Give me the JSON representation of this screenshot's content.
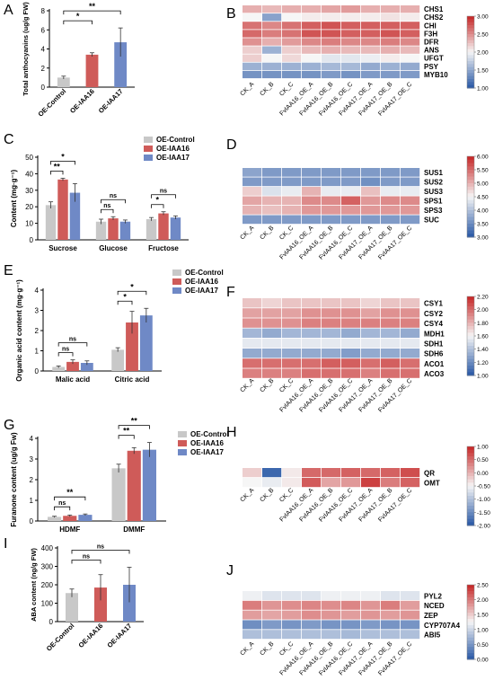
{
  "colors": {
    "control": "#c8c8c8",
    "iaa16": "#cf5b59",
    "iaa17": "#6f89c6",
    "heat_low": "#2f5da8",
    "heat_mid": "#f6f6f6",
    "heat_high": "#c72c2c",
    "axis": "#000000"
  },
  "panels": {
    "A": {
      "letter": "A"
    },
    "B": {
      "letter": "B"
    },
    "C": {
      "letter": "C"
    },
    "D": {
      "letter": "D"
    },
    "E": {
      "letter": "E"
    },
    "F": {
      "letter": "F"
    },
    "G": {
      "letter": "G"
    },
    "H": {
      "letter": "H"
    },
    "I": {
      "letter": "I"
    },
    "J": {
      "letter": "J"
    }
  },
  "chart_data": [
    {
      "id": "A",
      "type": "bar",
      "ylabel": "Total anthocyanins (ug/g FW)",
      "ylim": [
        0,
        8
      ],
      "yticks": [
        0,
        2,
        4,
        6,
        8
      ],
      "categories": [
        "OE-Control",
        "OE-IAA16",
        "OE-IAA17"
      ],
      "values": [
        1.0,
        3.4,
        4.7
      ],
      "errors": [
        0.15,
        0.2,
        1.5
      ],
      "significance": [
        {
          "from": 0,
          "to": 1,
          "label": "*"
        },
        {
          "from": 0,
          "to": 2,
          "label": "**"
        }
      ]
    },
    {
      "id": "C",
      "type": "bar",
      "ylabel": "Content (mg·g⁻¹)",
      "ylim": [
        0,
        50
      ],
      "yticks": [
        0,
        10,
        20,
        30,
        40,
        50
      ],
      "categories": [
        "Sucrose",
        "Glucose",
        "Fructose"
      ],
      "series": [
        {
          "name": "OE-Control",
          "values": [
            21,
            11,
            12.5
          ],
          "errors": [
            2,
            1.5,
            1
          ]
        },
        {
          "name": "OE-IAA16",
          "values": [
            36.5,
            13,
            16
          ],
          "errors": [
            0.8,
            1,
            1
          ]
        },
        {
          "name": "OE-IAA17",
          "values": [
            28.5,
            11,
            13.5
          ],
          "errors": [
            5.5,
            1,
            1
          ]
        }
      ],
      "significance": [
        {
          "group": 0,
          "from": 0,
          "to": 1,
          "label": "**"
        },
        {
          "group": 0,
          "from": 0,
          "to": 2,
          "label": "*"
        },
        {
          "group": 1,
          "from": 0,
          "to": 1,
          "label": "ns"
        },
        {
          "group": 1,
          "from": 0,
          "to": 2,
          "label": "ns"
        },
        {
          "group": 2,
          "from": 0,
          "to": 1,
          "label": "*"
        },
        {
          "group": 2,
          "from": 0,
          "to": 2,
          "label": "ns"
        }
      ]
    },
    {
      "id": "E",
      "type": "bar",
      "ylabel": "Organic acid content (mg·g⁻¹)",
      "ylim": [
        0,
        4
      ],
      "yticks": [
        0,
        1,
        2,
        3,
        4
      ],
      "categories": [
        "Malic acid",
        "Citric acid"
      ],
      "series": [
        {
          "name": "OE-Control",
          "values": [
            0.2,
            1.05
          ],
          "errors": [
            0.05,
            0.1
          ]
        },
        {
          "name": "OE-IAA16",
          "values": [
            0.45,
            2.4
          ],
          "errors": [
            0.1,
            0.55
          ]
        },
        {
          "name": "OE-IAA17",
          "values": [
            0.4,
            2.75
          ],
          "errors": [
            0.1,
            0.35
          ]
        }
      ],
      "significance": [
        {
          "group": 0,
          "from": 0,
          "to": 1,
          "label": "ns"
        },
        {
          "group": 0,
          "from": 0,
          "to": 2,
          "label": "ns"
        },
        {
          "group": 1,
          "from": 0,
          "to": 1,
          "label": "*"
        },
        {
          "group": 1,
          "from": 0,
          "to": 2,
          "label": "*"
        }
      ]
    },
    {
      "id": "G",
      "type": "bar",
      "ylabel": "Furanone content (ug/g Fw)",
      "ylim": [
        0,
        4
      ],
      "yticks": [
        0,
        1,
        2,
        3,
        4
      ],
      "categories": [
        "HDMF",
        "DMMF"
      ],
      "series": [
        {
          "name": "OE-Control",
          "values": [
            0.2,
            2.55
          ],
          "errors": [
            0.03,
            0.2
          ]
        },
        {
          "name": "OE-IAA16",
          "values": [
            0.25,
            3.4
          ],
          "errors": [
            0.04,
            0.15
          ]
        },
        {
          "name": "OE-IAA17",
          "values": [
            0.3,
            3.45
          ],
          "errors": [
            0.04,
            0.35
          ]
        }
      ],
      "significance": [
        {
          "group": 0,
          "from": 0,
          "to": 1,
          "label": "ns"
        },
        {
          "group": 0,
          "from": 0,
          "to": 2,
          "label": "**"
        },
        {
          "group": 1,
          "from": 0,
          "to": 1,
          "label": "**"
        },
        {
          "group": 1,
          "from": 0,
          "to": 2,
          "label": "**"
        }
      ]
    },
    {
      "id": "I",
      "type": "bar",
      "ylabel": "ABA content (ng/g FW)",
      "ylim": [
        0,
        400
      ],
      "yticks": [
        0,
        100,
        200,
        300,
        400
      ],
      "categories": [
        "OE-Control",
        "OE-IAA16",
        "OE-IAA17"
      ],
      "values": [
        155,
        185,
        200
      ],
      "errors": [
        22,
        70,
        95
      ],
      "significance": [
        {
          "from": 0,
          "to": 1,
          "label": "ns"
        },
        {
          "from": 0,
          "to": 2,
          "label": "ns"
        }
      ]
    },
    {
      "id": "B",
      "type": "heatmap",
      "columns": [
        "CK_A",
        "CK_B",
        "CK_C",
        "FvIAA16_OE_A",
        "FvIAA16_OE_B",
        "FvIAA16_OE_C",
        "FvIAA17_OE_A",
        "FvIAA17_OE_B",
        "FvIAA17_OE_C"
      ],
      "rows": [
        "CHS1",
        "CHS2",
        "CHI",
        "F3H",
        "DFR",
        "ANS",
        "UFGT",
        "PSY",
        "MYB10"
      ],
      "scale": [
        1.0,
        3.0
      ],
      "scale_ticks": [
        "3.00",
        "2.50",
        "2.00",
        "1.50",
        "1.00"
      ],
      "values": [
        [
          2.35,
          2.3,
          2.35,
          2.35,
          2.4,
          2.45,
          2.35,
          2.35,
          2.35
        ],
        [
          2.0,
          1.45,
          2.0,
          2.05,
          2.05,
          2.05,
          2.05,
          2.1,
          2.05
        ],
        [
          2.65,
          2.55,
          2.65,
          2.75,
          2.8,
          2.75,
          2.75,
          2.75,
          2.75
        ],
        [
          2.7,
          2.6,
          2.65,
          2.8,
          2.8,
          2.75,
          2.75,
          2.8,
          2.75
        ],
        [
          2.5,
          2.35,
          2.45,
          2.55,
          2.6,
          2.55,
          2.55,
          2.6,
          2.55
        ],
        [
          2.2,
          1.55,
          2.2,
          2.3,
          2.35,
          2.3,
          2.3,
          2.35,
          2.3
        ],
        [
          2.2,
          2.0,
          2.15,
          2.0,
          1.9,
          1.9,
          1.95,
          2.05,
          2.0
        ],
        [
          1.55,
          1.55,
          1.55,
          1.55,
          1.6,
          1.6,
          1.5,
          1.55,
          1.5
        ],
        [
          1.35,
          1.35,
          1.35,
          1.35,
          1.4,
          1.35,
          1.4,
          1.4,
          1.4
        ]
      ]
    },
    {
      "id": "D",
      "type": "heatmap",
      "columns": [
        "CK_A",
        "CK_B",
        "CK_C",
        "FvIAA16_OE_A",
        "FvIAA16_OE_B",
        "FvIAA16_OE_C",
        "FvIAA17_OE_A",
        "FvIAA17_OE_B",
        "FvIAA17_OE_C"
      ],
      "rows": [
        "SUS1",
        "SUS2",
        "SUS3",
        "SPS1",
        "SPS3",
        "SUC"
      ],
      "scale": [
        3.0,
        6.0
      ],
      "scale_ticks": [
        "6.00",
        "5.50",
        "5.00",
        "4.50",
        "4.00",
        "3.50",
        "3.00"
      ],
      "values": [
        [
          3.7,
          3.6,
          3.6,
          3.6,
          3.6,
          3.6,
          3.6,
          3.6,
          3.6
        ],
        [
          3.6,
          3.6,
          3.6,
          3.6,
          3.6,
          3.6,
          3.5,
          3.6,
          3.6
        ],
        [
          4.8,
          4.3,
          4.4,
          5.0,
          4.4,
          4.4,
          4.9,
          4.4,
          4.4
        ],
        [
          5.1,
          5.0,
          5.0,
          5.3,
          5.3,
          5.6,
          5.2,
          5.3,
          5.3
        ],
        [
          5.0,
          4.9,
          5.0,
          5.2,
          5.2,
          5.2,
          5.2,
          5.2,
          5.2
        ],
        [
          3.6,
          3.6,
          3.6,
          3.6,
          3.6,
          3.6,
          3.6,
          3.6,
          3.6
        ]
      ]
    },
    {
      "id": "F",
      "type": "heatmap",
      "columns": [
        "CK_A",
        "CK_B",
        "CK_C",
        "FvIAA16_OE_A",
        "FvIAA16_OE_B",
        "FvIAA16_OE_C",
        "FvIAA17_OE_A",
        "FvIAA17_OE_B",
        "FvIAA17_OE_C"
      ],
      "rows": [
        "CSY1",
        "CSY2",
        "CSY4",
        "MDH1",
        "SDH1",
        "SDH6",
        "ACO1",
        "ACO3"
      ],
      "scale": [
        1.0,
        2.2
      ],
      "scale_ticks": [
        "2.20",
        "2.00",
        "1.80",
        "1.60",
        "1.40",
        "1.20",
        "1.00"
      ],
      "values": [
        [
          1.75,
          1.7,
          1.75,
          1.75,
          1.75,
          1.75,
          1.7,
          1.75,
          1.75
        ],
        [
          1.85,
          1.85,
          1.85,
          1.9,
          1.9,
          1.9,
          1.85,
          1.9,
          1.9
        ],
        [
          1.9,
          1.9,
          1.9,
          1.95,
          1.95,
          1.95,
          1.95,
          1.95,
          1.95
        ],
        [
          1.35,
          1.3,
          1.35,
          1.35,
          1.35,
          1.3,
          1.35,
          1.35,
          1.3
        ],
        [
          1.55,
          1.55,
          1.55,
          1.55,
          1.55,
          1.55,
          1.55,
          1.55,
          1.55
        ],
        [
          1.3,
          1.3,
          1.3,
          1.3,
          1.3,
          1.25,
          1.3,
          1.3,
          1.3
        ],
        [
          2.0,
          2.0,
          2.0,
          2.0,
          2.05,
          2.05,
          2.0,
          2.05,
          2.0
        ],
        [
          1.95,
          1.95,
          1.95,
          2.0,
          2.0,
          2.0,
          1.95,
          2.0,
          2.0
        ]
      ]
    },
    {
      "id": "H",
      "type": "heatmap",
      "columns": [
        "CK_A",
        "CK_B",
        "CK_C",
        "FvIAA16_OE_A",
        "FvIAA16_OE_B",
        "FvIAA16_OE_C",
        "FvIAA17_OE_A",
        "FvIAA17_OE_B",
        "FvIAA17_OE_C"
      ],
      "rows": [
        "QR",
        "OMT"
      ],
      "scale": [
        -2.0,
        1.0
      ],
      "scale_ticks": [
        "1.00",
        "0.50",
        "0.00",
        "-0.50",
        "-1.00",
        "-1.50",
        "-2.00"
      ],
      "values": [
        [
          -0.2,
          -1.9,
          -0.4,
          0.55,
          0.55,
          0.6,
          0.55,
          0.6,
          0.75
        ],
        [
          -0.5,
          -0.6,
          -0.4,
          0.65,
          0.1,
          0.2,
          0.85,
          0.4,
          0.6
        ]
      ]
    },
    {
      "id": "J",
      "type": "heatmap",
      "columns": [
        "CK_A",
        "CK_B",
        "CK_C",
        "FvIAA16_OE_A",
        "FvIAA16_OE_B",
        "FvIAA16_OE_C",
        "FvIAA17_OE_A",
        "FvIAA17_OE_B",
        "FvIAA17_OE_C"
      ],
      "rows": [
        "PYL2",
        "NCED",
        "ZEP",
        "CYP707A4",
        "ABI5"
      ],
      "scale": [
        0.0,
        2.5
      ],
      "scale_ticks": [
        "2.50",
        "2.00",
        "1.50",
        "1.00",
        "0.50",
        "0.00"
      ],
      "values": [
        [
          1.2,
          1.1,
          1.1,
          1.1,
          1.2,
          1.2,
          1.2,
          1.1,
          1.1
        ],
        [
          2.0,
          1.85,
          1.9,
          1.95,
          1.9,
          1.95,
          1.85,
          2.0,
          1.8
        ],
        [
          1.8,
          1.75,
          1.8,
          1.9,
          1.85,
          1.8,
          1.85,
          1.8,
          1.85
        ],
        [
          0.4,
          0.5,
          0.45,
          0.5,
          0.45,
          0.45,
          0.5,
          0.45,
          0.45
        ],
        [
          0.8,
          0.8,
          0.8,
          0.8,
          0.8,
          0.75,
          0.8,
          0.8,
          0.8
        ]
      ]
    }
  ]
}
